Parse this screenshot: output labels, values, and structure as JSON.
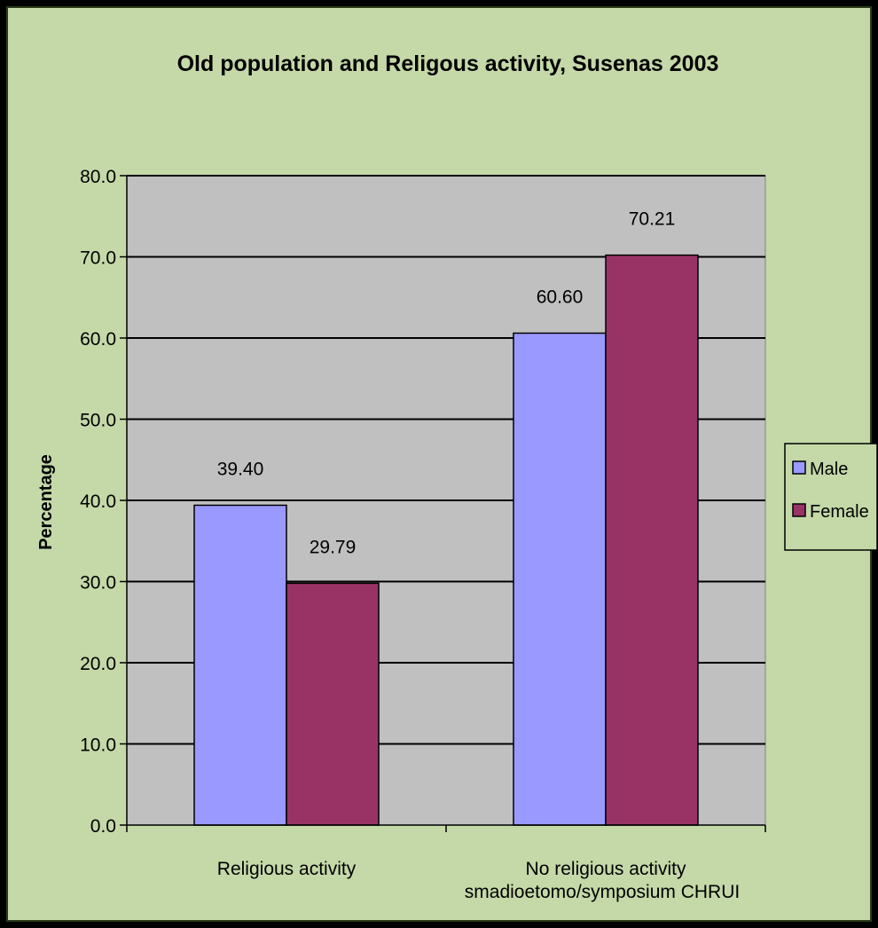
{
  "chart_data": {
    "type": "bar",
    "title": "Old population and Religous activity, Susenas 2003",
    "xlabel": "",
    "ylabel": "Percentage",
    "categories": [
      "Religious activity",
      "No religious activity"
    ],
    "series": [
      {
        "name": "Male",
        "values": [
          39.4,
          60.6
        ],
        "labels": [
          "39.40",
          "60.60"
        ],
        "color": "#9999FF"
      },
      {
        "name": "Female",
        "values": [
          29.79,
          70.21
        ],
        "labels": [
          "29.79",
          "70.21"
        ],
        "color": "#993366"
      }
    ],
    "ylim": [
      0,
      80
    ],
    "yticks": [
      "0.0",
      "10.0",
      "20.0",
      "30.0",
      "40.0",
      "50.0",
      "60.0",
      "70.0",
      "80.0"
    ],
    "grid": true,
    "legend_position": "right",
    "plot_background": "#C0C0C0",
    "page_background": "#C5D9A8"
  },
  "credit": "smadioetomo/symposium CHRUI"
}
